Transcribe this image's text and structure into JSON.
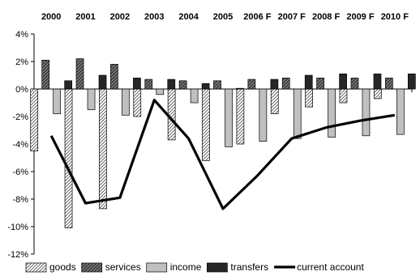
{
  "chart_data": {
    "type": "bar",
    "categories": [
      "2000",
      "2001",
      "2002",
      "2003",
      "2004",
      "2005",
      "2006 F",
      "2007 F",
      "2008 F",
      "2009 F",
      "2010 F"
    ],
    "ylim": [
      -12,
      4
    ],
    "yticks": [
      4,
      2,
      0,
      -2,
      -4,
      -6,
      -8,
      -10,
      -12
    ],
    "ytick_labels": [
      "4%",
      "2%",
      "0%",
      "-2%",
      "-4%",
      "-6%",
      "-8%",
      "-10%",
      "-12%"
    ],
    "grid": false,
    "legend_position": "bottom",
    "series": [
      {
        "name": "goods",
        "type": "bar",
        "pattern": "diagonal-light",
        "values": [
          -4.5,
          -10.1,
          -8.7,
          -2.0,
          -3.7,
          -5.2,
          -4.0,
          -1.8,
          -1.3,
          -1.0,
          -0.7
        ]
      },
      {
        "name": "services",
        "type": "bar",
        "pattern": "diagonal-dark",
        "values": [
          2.1,
          2.2,
          1.8,
          0.7,
          0.6,
          0.6,
          0.7,
          0.8,
          0.8,
          0.8,
          0.8
        ]
      },
      {
        "name": "income",
        "type": "bar",
        "color": "#c0c0c0",
        "values": [
          -1.8,
          -1.5,
          -1.9,
          -0.4,
          -1.0,
          -4.2,
          -3.8,
          -3.6,
          -3.5,
          -3.4,
          -3.3
        ]
      },
      {
        "name": "transfers",
        "type": "bar",
        "color": "#262626",
        "values": [
          0.6,
          1.0,
          0.8,
          0.7,
          0.4,
          0.05,
          0.7,
          1.0,
          1.1,
          1.1,
          1.1
        ]
      },
      {
        "name": "current account",
        "type": "line",
        "color": "#000000",
        "values": [
          -3.4,
          -8.3,
          -7.9,
          -0.8,
          -3.6,
          -8.7,
          -6.3,
          -3.6,
          -2.8,
          -2.3,
          -1.9
        ]
      }
    ]
  }
}
